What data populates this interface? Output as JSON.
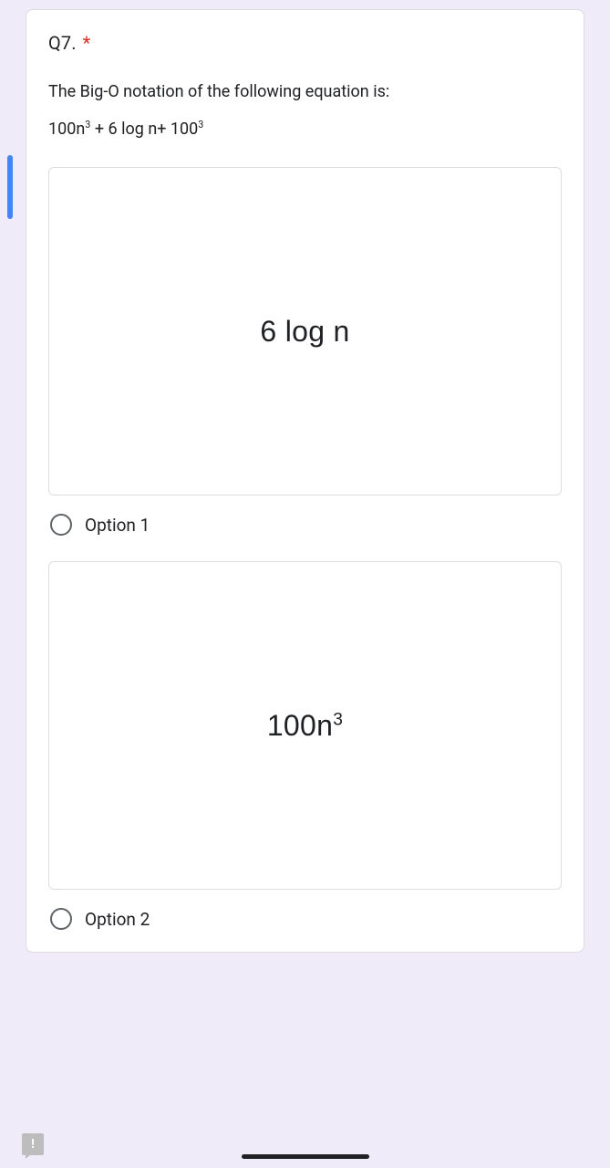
{
  "question": {
    "number_label": "Q7.",
    "required_marker": "*",
    "description_line1": "The Big-O notation of the following equation is:",
    "equation_prefix": "100n",
    "equation_sup1": "3",
    "equation_mid": " + 6 log n+ 100",
    "equation_sup2": "3"
  },
  "options": [
    {
      "image_text": "6 log n",
      "has_sup": false,
      "sup_text": "",
      "label": "Option 1"
    },
    {
      "image_text": "100n",
      "has_sup": true,
      "sup_text": "3",
      "label": "Option 2"
    }
  ],
  "feedback_icon_text": "!",
  "colors": {
    "page_bg": "#f0ebf8",
    "card_bg": "#ffffff",
    "border": "#dadce0",
    "text": "#202124",
    "required": "#d93025",
    "radio_border": "#5f6368",
    "accent": "#4285f4",
    "feedback_bg": "#bdbdbd"
  }
}
